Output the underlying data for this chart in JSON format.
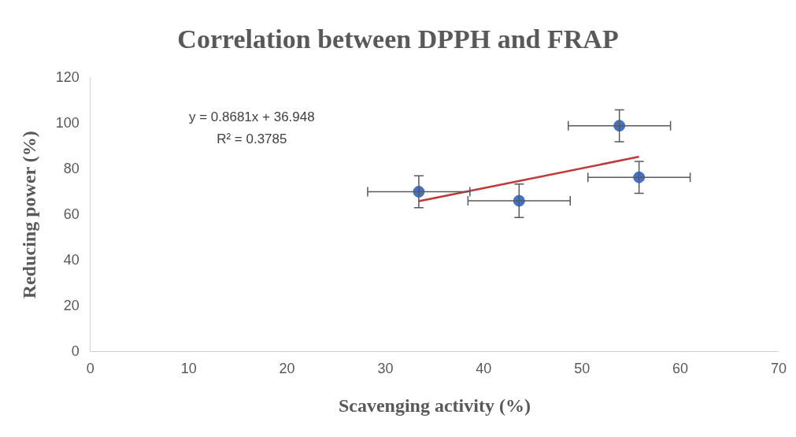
{
  "chart_data": {
    "type": "scatter",
    "title": "Correlation between DPPH and FRAP",
    "xlabel": "Scavenging activity (%)",
    "ylabel": "Reducing power (%)",
    "xlim": [
      0,
      70
    ],
    "xticks": [
      0,
      10,
      20,
      30,
      40,
      50,
      60,
      70
    ],
    "ylim": [
      0,
      120
    ],
    "yticks": [
      0,
      20,
      40,
      60,
      80,
      100,
      120
    ],
    "grid": false,
    "legend": false,
    "series": [
      {
        "marker": "circle",
        "color": "#4472c4",
        "x": [
          33.4,
          43.6,
          53.8,
          55.8
        ],
        "values": [
          70.1,
          66.1,
          99,
          76.4
        ],
        "errors": [
          7,
          7.3,
          7,
          7
        ],
        "xerrors": [
          5.2,
          5.2,
          5.2,
          5.2
        ]
      },
      {
        "type": "line",
        "color": "#c0393b",
        "x": [
          33.4,
          55.8
        ],
        "values": [
          65.9,
          85.4
        ]
      }
    ],
    "annotations": [
      "y = 0.8681x + 36.948",
      "R² = 0.3785"
    ]
  }
}
